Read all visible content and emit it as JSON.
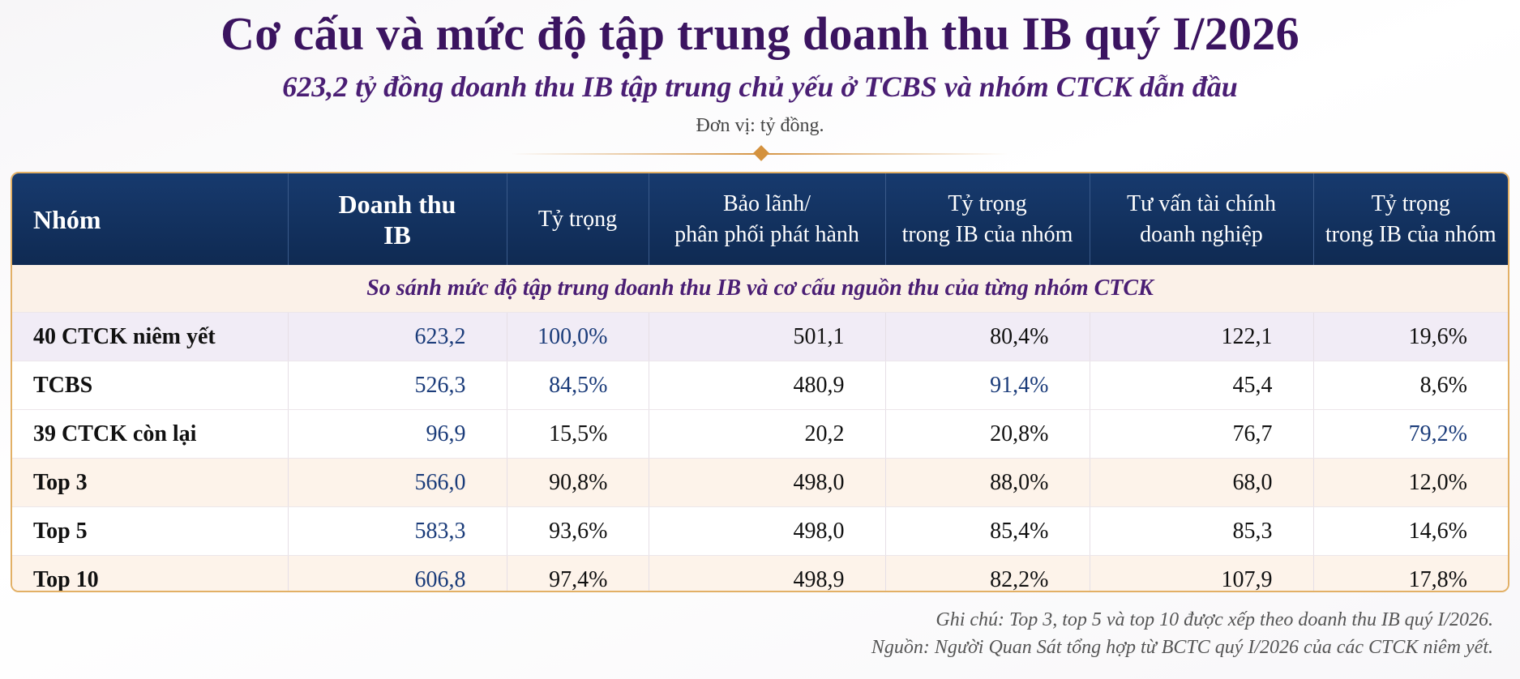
{
  "title": "Cơ cấu và mức độ tập trung doanh thu IB quý I/2026",
  "subtitle": "623,2 tỷ đồng doanh thu IB tập trung chủ yếu ở TCBS và nhóm CTCK dẫn đầu",
  "unit": "Đơn vị: tỷ đồng.",
  "table": {
    "headers": {
      "group": "Nhóm",
      "revenue_1": "Doanh thu",
      "revenue_2": "IB",
      "share": "Tỷ trọng",
      "underwriting_1": "Bảo lãnh/",
      "underwriting_2": "phân phối phát hành",
      "uw_share_1": "Tỷ trọng",
      "uw_share_2": "trong IB của nhóm",
      "advisory_1": "Tư vấn tài chính",
      "advisory_2": "doanh nghiệp",
      "adv_share_1": "Tỷ trọng",
      "adv_share_2": "trong IB của nhóm"
    },
    "section_label": "So sánh mức độ tập trung doanh thu IB và cơ cấu nguồn thu của từng nhóm CTCK",
    "rows": [
      {
        "group": "40 CTCK niêm yết",
        "revenue": "623,2",
        "share": "100,0%",
        "underwriting": "501,1",
        "uw_share": "80,4%",
        "advisory": "122,1",
        "adv_share": "19,6%"
      },
      {
        "group": "TCBS",
        "revenue": "526,3",
        "share": "84,5%",
        "underwriting": "480,9",
        "uw_share": "91,4%",
        "advisory": "45,4",
        "adv_share": "8,6%"
      },
      {
        "group": "39 CTCK còn lại",
        "revenue": "96,9",
        "share": "15,5%",
        "underwriting": "20,2",
        "uw_share": "20,8%",
        "advisory": "76,7",
        "adv_share": "79,2%"
      },
      {
        "group": "Top 3",
        "revenue": "566,0",
        "share": "90,8%",
        "underwriting": "498,0",
        "uw_share": "88,0%",
        "advisory": "68,0",
        "adv_share": "12,0%"
      },
      {
        "group": "Top 5",
        "revenue": "583,3",
        "share": "93,6%",
        "underwriting": "498,0",
        "uw_share": "85,4%",
        "advisory": "85,3",
        "adv_share": "14,6%"
      },
      {
        "group": "Top 10",
        "revenue": "606,8",
        "share": "97,4%",
        "underwriting": "498,9",
        "uw_share": "82,2%",
        "advisory": "107,9",
        "adv_share": "17,8%"
      }
    ]
  },
  "notes": {
    "note": "Ghi chú: Top 3, top 5 và top 10 được xếp theo doanh thu IB quý I/2026.",
    "source": "Nguồn: Người Quan Sát tổng hợp từ BCTC quý I/2026 của các CTCK niêm yết."
  },
  "colors": {
    "title": "#3b1460",
    "header_bg": "#0f2a52",
    "highlight_value": "#1b3c7a",
    "accent": "#d49444"
  }
}
